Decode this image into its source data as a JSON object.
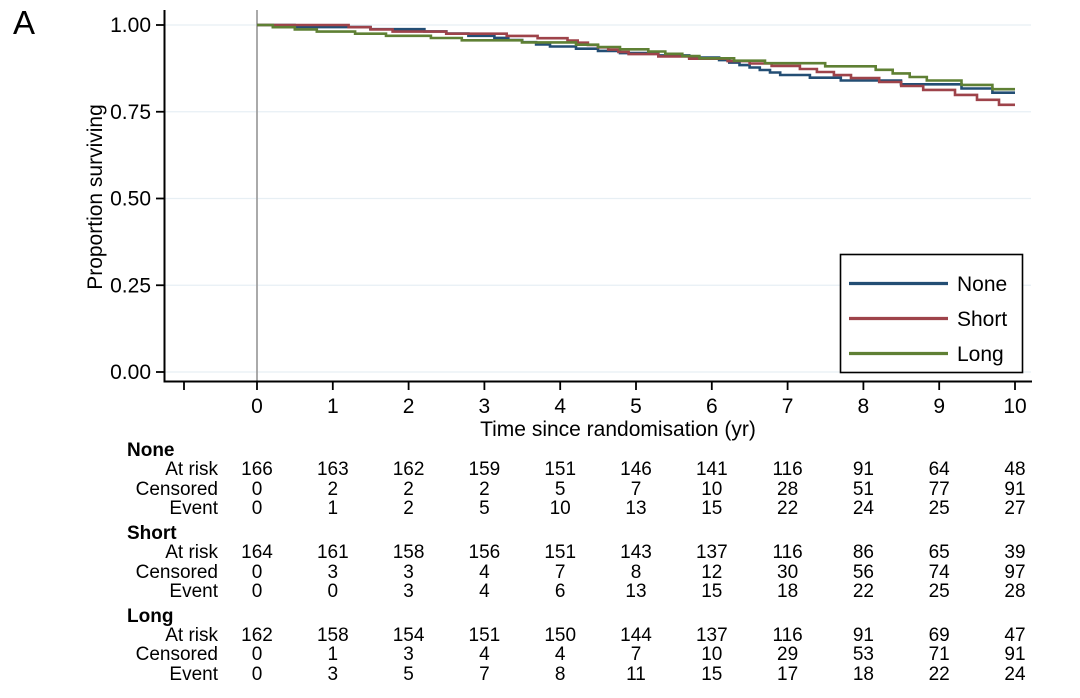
{
  "panel_label": "A",
  "chart_data": {
    "type": "line",
    "subtype": "kaplan-meier-step-curves",
    "title": "",
    "xlabel": "Time since randomisation (yr)",
    "ylabel": "Proportion surviving",
    "x_ticks": [
      "0",
      "1",
      "2",
      "3",
      "4",
      "5",
      "6",
      "7",
      "8",
      "9",
      "10"
    ],
    "y_ticks": [
      "1.00",
      "0.75",
      "0.50",
      "0.25",
      "0.00"
    ],
    "xlim": [
      -1.2,
      10.2
    ],
    "ylim": [
      0.0,
      1.04
    ],
    "grid": true,
    "gridline_color": "#e7eff4",
    "zero_line_color": "#a0a0a0",
    "axis_color": "#000000",
    "legend_position": "lower-right",
    "series": [
      {
        "name": "None",
        "color": "#234e74",
        "survival_by_year": [
          1.0,
          0.994,
          0.988,
          0.969,
          0.938,
          0.919,
          0.906,
          0.856,
          0.84,
          0.829,
          0.805
        ],
        "events_per_year": [
          1,
          1,
          3,
          5,
          3,
          2,
          7,
          2,
          1,
          2
        ]
      },
      {
        "name": "Short",
        "color": "#9e434a",
        "survival_by_year": [
          1.0,
          1.0,
          0.981,
          0.975,
          0.962,
          0.916,
          0.903,
          0.882,
          0.847,
          0.813,
          0.77
        ],
        "events_per_year": [
          0,
          3,
          1,
          2,
          7,
          2,
          3,
          4,
          3,
          3
        ]
      },
      {
        "name": "Long",
        "color": "#5f8034",
        "survival_by_year": [
          1.0,
          0.981,
          0.969,
          0.956,
          0.95,
          0.93,
          0.904,
          0.89,
          0.881,
          0.84,
          0.815
        ],
        "events_per_year": [
          3,
          2,
          2,
          1,
          3,
          4,
          2,
          1,
          4,
          2
        ]
      }
    ],
    "risk_table": {
      "row_labels": [
        "At risk",
        "Censored",
        "Event"
      ],
      "time_points": [
        0,
        1,
        2,
        3,
        4,
        5,
        6,
        7,
        8,
        9,
        10
      ],
      "groups": [
        {
          "name": "None",
          "at_risk": [
            166,
            163,
            162,
            159,
            151,
            146,
            141,
            116,
            91,
            64,
            48
          ],
          "censored": [
            0,
            2,
            2,
            2,
            5,
            7,
            10,
            28,
            51,
            77,
            91
          ],
          "event": [
            0,
            1,
            2,
            5,
            10,
            13,
            15,
            22,
            24,
            25,
            27
          ]
        },
        {
          "name": "Short",
          "at_risk": [
            164,
            161,
            158,
            156,
            151,
            143,
            137,
            116,
            86,
            65,
            39
          ],
          "censored": [
            0,
            3,
            3,
            4,
            7,
            8,
            12,
            30,
            56,
            74,
            97
          ],
          "event": [
            0,
            0,
            3,
            4,
            6,
            13,
            15,
            18,
            22,
            25,
            28
          ]
        },
        {
          "name": "Long",
          "at_risk": [
            162,
            158,
            154,
            151,
            150,
            144,
            137,
            116,
            91,
            69,
            47
          ],
          "censored": [
            0,
            1,
            3,
            4,
            4,
            7,
            10,
            29,
            53,
            71,
            91
          ],
          "event": [
            0,
            3,
            5,
            7,
            8,
            11,
            15,
            17,
            18,
            22,
            24
          ]
        }
      ]
    }
  }
}
